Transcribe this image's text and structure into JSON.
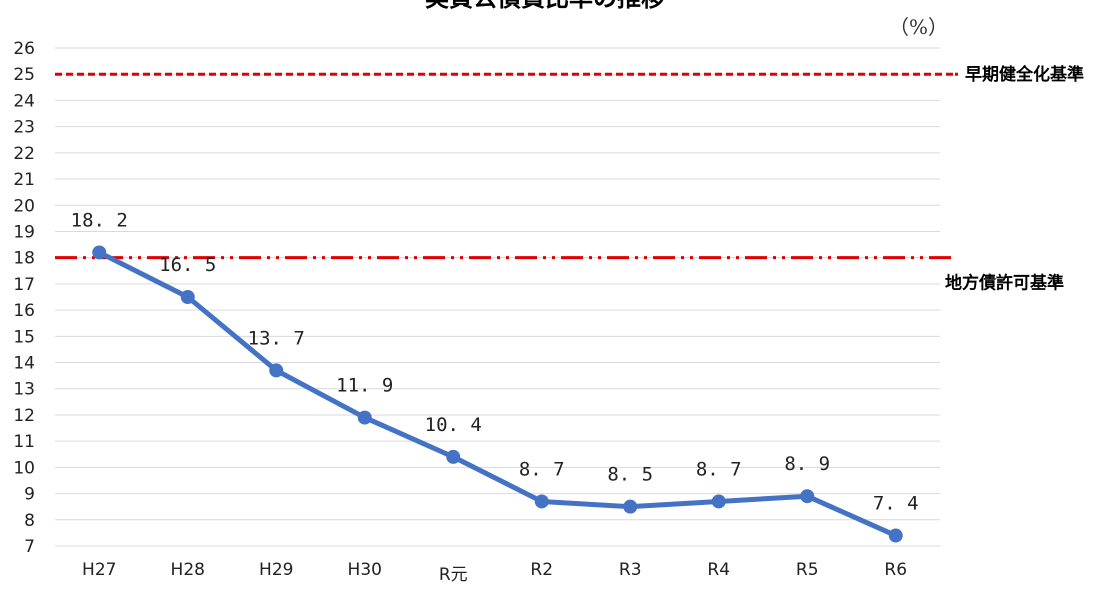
{
  "chart_data": {
    "type": "line",
    "title": "実質公債費比率の推移",
    "unit_label": "（%）",
    "categories": [
      "H27",
      "H28",
      "H29",
      "H30",
      "R元",
      "R2",
      "R3",
      "R4",
      "R5",
      "R6"
    ],
    "series": [
      {
        "values": [
          18.2,
          16.5,
          13.7,
          11.9,
          10.4,
          8.7,
          8.5,
          8.7,
          8.9,
          7.4
        ],
        "color": "#4472C4"
      }
    ],
    "ylim": [
      7,
      26
    ],
    "yticks": [
      7,
      8,
      9,
      10,
      11,
      12,
      13,
      14,
      15,
      16,
      17,
      18,
      19,
      20,
      21,
      22,
      23,
      24,
      25,
      26
    ],
    "grid": true,
    "reference_lines": [
      {
        "label": "早期健全化基準",
        "value": 25,
        "color": "#E00000",
        "style": "dashed"
      },
      {
        "label": "地方債許可基準",
        "value": 18,
        "color": "#E00000",
        "style": "dash-dot-dot"
      }
    ]
  }
}
